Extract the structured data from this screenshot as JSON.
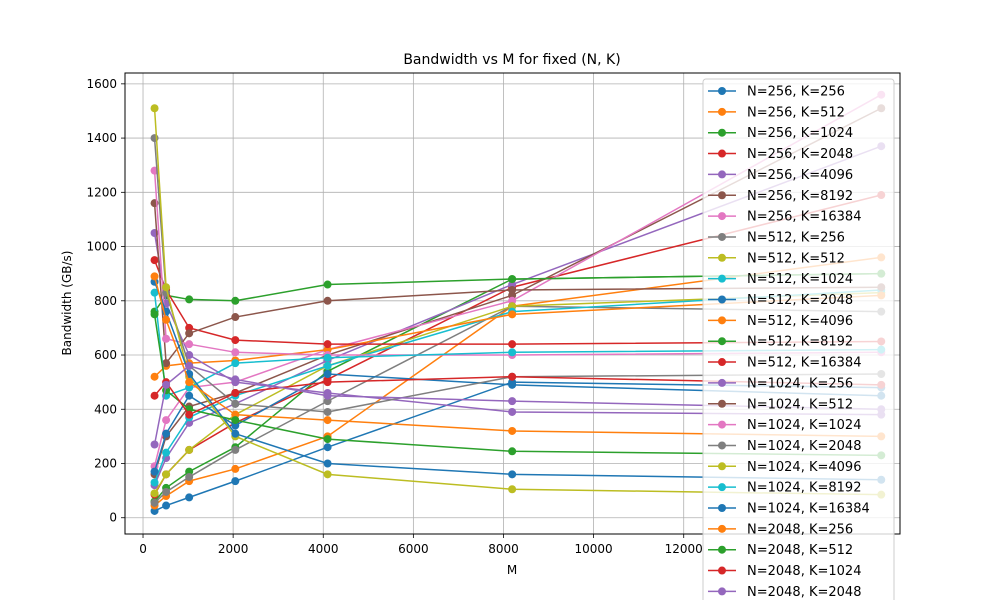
{
  "chart_data": {
    "type": "line",
    "title": "Bandwidth vs M for fixed (N, K)",
    "xlabel": "M",
    "ylabel": "Bandwidth (GB/s)",
    "xlim": [
      -400,
      16800
    ],
    "ylim": [
      -60,
      1640
    ],
    "x_ticks": [
      0,
      2000,
      4000,
      6000,
      8000,
      10000,
      12000
    ],
    "x_tick_labels": [
      "0",
      "2000",
      "4000",
      "6000",
      "8000",
      "10000",
      "12000"
    ],
    "y_ticks": [
      0,
      200,
      400,
      600,
      800,
      1000,
      1200,
      1400,
      1600
    ],
    "y_tick_labels": [
      "0",
      "200",
      "400",
      "600",
      "800",
      "1000",
      "1200",
      "1400",
      "1600"
    ],
    "grid": true,
    "legend_position": "top-right",
    "x": [
      256,
      512,
      1024,
      2048,
      4096,
      8192,
      16384
    ],
    "series": [
      {
        "name": "N=256, K=256",
        "color": "#1f77b4",
        "values": [
          25,
          45,
          75,
          135,
          260,
          500,
          480
        ]
      },
      {
        "name": "N=256, K=512",
        "color": "#ff7f0e",
        "values": [
          45,
          80,
          135,
          180,
          300,
          780,
          960
        ]
      },
      {
        "name": "N=256, K=1024",
        "color": "#2ca02c",
        "values": [
          60,
          110,
          170,
          260,
          540,
          880,
          900
        ]
      },
      {
        "name": "N=256, K=2048",
        "color": "#d62728",
        "values": [
          85,
          160,
          250,
          350,
          510,
          850,
          1190
        ]
      },
      {
        "name": "N=256, K=4096",
        "color": "#9467bd",
        "values": [
          120,
          220,
          350,
          420,
          580,
          860,
          1370
        ]
      },
      {
        "name": "N=256, K=8192",
        "color": "#8c564b",
        "values": [
          160,
          300,
          410,
          460,
          600,
          820,
          1510
        ]
      },
      {
        "name": "N=256, K=16384",
        "color": "#e377c2",
        "values": [
          190,
          360,
          480,
          500,
          620,
          800,
          1560
        ]
      },
      {
        "name": "N=512, K=256",
        "color": "#7f7f7f",
        "values": [
          55,
          95,
          150,
          250,
          430,
          780,
          760
        ]
      },
      {
        "name": "N=512, K=512",
        "color": "#bcbd22",
        "values": [
          90,
          160,
          250,
          380,
          560,
          780,
          830
        ]
      },
      {
        "name": "N=512, K=1024",
        "color": "#17becf",
        "values": [
          130,
          240,
          370,
          450,
          560,
          760,
          840
        ]
      },
      {
        "name": "N=512, K=2048",
        "color": "#1f77b4",
        "values": [
          170,
          310,
          450,
          340,
          530,
          490,
          450
        ]
      },
      {
        "name": "N=512, K=4096",
        "color": "#ff7f0e",
        "values": [
          520,
          560,
          570,
          580,
          620,
          750,
          820
        ]
      },
      {
        "name": "N=512, K=8192",
        "color": "#2ca02c",
        "values": [
          760,
          820,
          805,
          800,
          860,
          880,
          900
        ]
      },
      {
        "name": "N=512, K=16384",
        "color": "#d62728",
        "values": [
          950,
          840,
          700,
          655,
          640,
          640,
          650
        ]
      },
      {
        "name": "N=1024, K=256",
        "color": "#9467bd",
        "values": [
          1050,
          790,
          600,
          500,
          460,
          390,
          380
        ]
      },
      {
        "name": "N=1024, K=512",
        "color": "#8c564b",
        "values": [
          1160,
          570,
          680,
          740,
          800,
          840,
          850
        ]
      },
      {
        "name": "N=1024, K=1024",
        "color": "#e377c2",
        "values": [
          1280,
          660,
          640,
          610,
          600,
          600,
          610
        ]
      },
      {
        "name": "N=1024, K=2048",
        "color": "#7f7f7f",
        "values": [
          1400,
          830,
          560,
          420,
          390,
          520,
          530
        ]
      },
      {
        "name": "N=1024, K=4096",
        "color": "#bcbd22",
        "values": [
          1510,
          850,
          520,
          300,
          160,
          105,
          85
        ]
      },
      {
        "name": "N=1024, K=8192",
        "color": "#17becf",
        "values": [
          830,
          450,
          480,
          570,
          590,
          610,
          620
        ]
      },
      {
        "name": "N=1024, K=16384",
        "color": "#1f77b4",
        "values": [
          870,
          760,
          530,
          310,
          200,
          160,
          140
        ]
      },
      {
        "name": "N=2048, K=256",
        "color": "#ff7f0e",
        "values": [
          890,
          730,
          500,
          380,
          360,
          320,
          300
        ]
      },
      {
        "name": "N=2048, K=512",
        "color": "#2ca02c",
        "values": [
          750,
          470,
          400,
          360,
          290,
          245,
          230
        ]
      },
      {
        "name": "N=2048, K=1024",
        "color": "#d62728",
        "values": [
          450,
          500,
          380,
          460,
          500,
          520,
          490
        ]
      },
      {
        "name": "N=2048, K=2048",
        "color": "#9467bd",
        "values": [
          270,
          490,
          560,
          510,
          450,
          430,
          400
        ]
      }
    ]
  }
}
